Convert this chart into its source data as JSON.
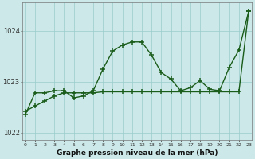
{
  "x": [
    0,
    1,
    2,
    3,
    4,
    5,
    6,
    7,
    8,
    9,
    10,
    11,
    12,
    13,
    14,
    15,
    16,
    17,
    18,
    19,
    20,
    21,
    22,
    23
  ],
  "line_jagged": [
    1022.35,
    1022.78,
    1022.78,
    1022.82,
    1022.82,
    1022.68,
    1022.72,
    1022.82,
    1023.25,
    1023.6,
    1023.72,
    1023.78,
    1023.78,
    1023.52,
    1023.18,
    1023.05,
    1022.82,
    1022.88,
    1023.02,
    1022.85,
    1022.82,
    1023.28,
    1023.62,
    1024.38
  ],
  "line_trend": [
    1022.42,
    1022.52,
    1022.62,
    1022.72,
    1022.78,
    1022.78,
    1022.78,
    1022.78,
    1022.8,
    1022.8,
    1022.8,
    1022.8,
    1022.8,
    1022.8,
    1022.8,
    1022.8,
    1022.8,
    1022.8,
    1022.8,
    1022.8,
    1022.8,
    1022.8,
    1022.8,
    1024.38
  ],
  "line_color": "#1a5c1a",
  "bg_color": "#cce8e8",
  "grid_color": "#99cccc",
  "xlabel": "Graphe pression niveau de la mer (hPa)",
  "yticks": [
    1022,
    1023,
    1024
  ],
  "ylim": [
    1021.85,
    1024.55
  ],
  "xlim": [
    -0.3,
    23.3
  ],
  "xticks": [
    0,
    1,
    2,
    3,
    4,
    5,
    6,
    7,
    8,
    9,
    10,
    11,
    12,
    13,
    14,
    15,
    16,
    17,
    18,
    19,
    20,
    21,
    22,
    23
  ],
  "marker": "+",
  "markersize": 4,
  "linewidth": 1.0
}
